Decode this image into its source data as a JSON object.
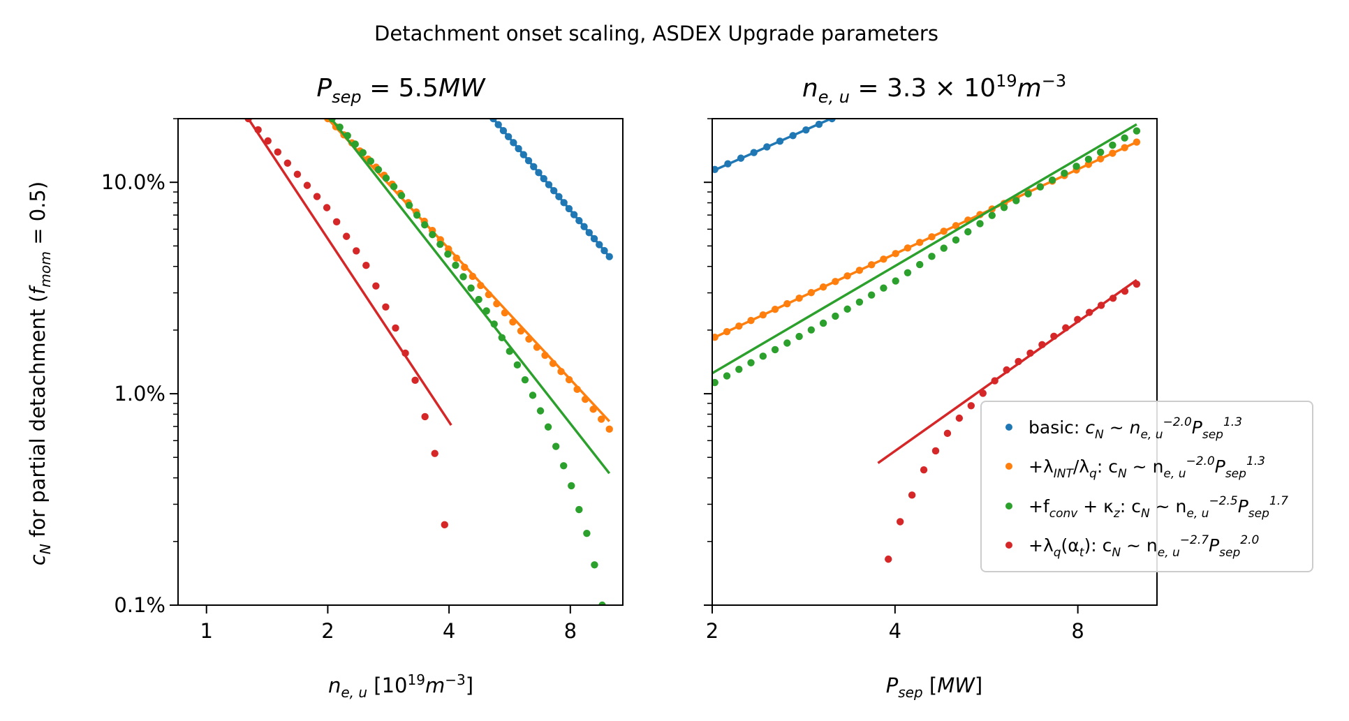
{
  "figure": {
    "suptitle": "Detachment onset scaling, ASDEX Upgrade parameters",
    "shared_ylabel": {
      "main": "c",
      "main_sub": "N",
      "rest": " for partial detachment (",
      "f": "f",
      "f_sub": "mom",
      "eq": " = 0.5)"
    }
  },
  "chart_data": [
    {
      "type": "scatter",
      "title": "P_sep = 5.5MW",
      "title_parts": {
        "var": "P",
        "sub": "sep",
        "eq": " = 5.5",
        "unit": "MW"
      },
      "xlabel": "n_e,u [10^19 m^-3]",
      "xlabel_parts": {
        "var": "n",
        "sub": "e, u",
        "pre": " [10",
        "exp": "19",
        "unit": "m",
        "unit_exp": "−3",
        "post": "]"
      },
      "ylabel": "c_N for partial detachment (f_mom = 0.5)",
      "xscale": "log",
      "yscale": "log",
      "xlim": [
        0.85,
        10.8
      ],
      "ylim": [
        0.001,
        0.2
      ],
      "xticks": [
        1,
        2,
        4,
        8
      ],
      "xtick_labels": [
        "1",
        "2",
        "4",
        "8"
      ],
      "yticks": [
        0.001,
        0.01,
        0.1
      ],
      "ytick_labels": [
        "0.1%",
        "1.0%",
        "10.0%"
      ],
      "grid": false,
      "series": [
        {
          "name": "basic",
          "color": "#1f77b4",
          "points": {
            "x_start": 5.15,
            "x_end": 10.0,
            "n": 24,
            "anchors": [
              [
                5.15,
                0.2
              ],
              [
                10.0,
                0.0445
              ]
            ]
          },
          "fit": {
            "x_range": [
              5.15,
              10.0
            ],
            "y_range": [
              0.2,
              0.0445
            ]
          }
        },
        {
          "name": "+λ_INT/λ_q",
          "color": "#ff7f0e",
          "points": {
            "x_start": 2.0,
            "x_end": 10.0,
            "n": 36,
            "anchors": [
              [
                2.0,
                0.2
              ],
              [
                2.8,
                0.105
              ],
              [
                4.0,
                0.048
              ],
              [
                6.0,
                0.02
              ],
              [
                8.0,
                0.0115
              ],
              [
                10.0,
                0.0068
              ]
            ]
          },
          "fit": {
            "x_range": [
              2.0,
              10.0
            ],
            "y_range": [
              0.2,
              0.0074
            ]
          }
        },
        {
          "name": "+f_conv + κ_z",
          "color": "#2ca02c",
          "points": {
            "x_start": 2.05,
            "x_end": 9.6,
            "n": 36,
            "anchors": [
              [
                2.05,
                0.2
              ],
              [
                3.0,
                0.09
              ],
              [
                4.0,
                0.045
              ],
              [
                5.0,
                0.024
              ],
              [
                6.0,
                0.013
              ],
              [
                7.0,
                0.0072
              ],
              [
                8.0,
                0.0038
              ],
              [
                9.0,
                0.0019
              ],
              [
                9.6,
                0.001
              ]
            ]
          },
          "fit": {
            "x_range": [
              2.0,
              10.0
            ],
            "y_range": [
              0.21,
              0.0042
            ]
          }
        },
        {
          "name": "+λ_q(α_t)",
          "color": "#d62728",
          "points": {
            "x_start": 1.27,
            "x_end": 3.9,
            "n": 21,
            "anchors": [
              [
                1.27,
                0.2
              ],
              [
                2.0,
                0.075
              ],
              [
                2.5,
                0.04
              ],
              [
                3.0,
                0.019
              ],
              [
                3.3,
                0.0115
              ],
              [
                3.6,
                0.0062
              ],
              [
                3.8,
                0.0042
              ],
              [
                3.9,
                0.0024
              ]
            ]
          },
          "fit": {
            "x_range": [
              1.27,
              4.05
            ],
            "y_range": [
              0.2,
              0.0071
            ]
          }
        }
      ]
    },
    {
      "type": "scatter",
      "title": "n_e,u = 3.3 × 10^19 m^-3",
      "title_parts": {
        "var": "n",
        "sub": "e, u",
        "eq": " = 3.3 × 10",
        "exp": "19",
        "unit": "m",
        "unit_exp": "−3"
      },
      "xlabel": "P_sep [MW]",
      "xlabel_parts": {
        "var": "P",
        "sub": "sep",
        "post": " [",
        "unit": "MW",
        "close": "]"
      },
      "xscale": "log",
      "yscale": "log",
      "xlim": [
        2.0,
        10.8
      ],
      "ylim": [
        0.001,
        0.2
      ],
      "xticks": [
        2,
        4,
        8
      ],
      "xtick_labels": [
        "2",
        "4",
        "8"
      ],
      "yticks": [
        0.001,
        0.01,
        0.1
      ],
      "grid": false,
      "series": [
        {
          "name": "basic",
          "color": "#1f77b4",
          "points": {
            "x_start": 2.02,
            "x_end": 3.15,
            "n": 10,
            "anchors": [
              [
                2.02,
                0.115
              ],
              [
                3.15,
                0.2
              ]
            ]
          },
          "fit": {
            "x_range": [
              2.0,
              3.2
            ],
            "y_range": [
              0.113,
              0.205
            ]
          }
        },
        {
          "name": "+λ_INT/λ_q",
          "color": "#ff7f0e",
          "points": {
            "x_start": 2.02,
            "x_end": 10.0,
            "n": 36,
            "anchors": [
              [
                2.02,
                0.0185
              ],
              [
                10.0,
                0.155
              ]
            ]
          },
          "fit": {
            "x_range": [
              2.02,
              10.0
            ],
            "y_range": [
              0.0185,
              0.155
            ]
          }
        },
        {
          "name": "+f_conv + κ_z",
          "color": "#2ca02c",
          "points": {
            "x_start": 2.02,
            "x_end": 10.0,
            "n": 36,
            "anchors": [
              [
                2.02,
                0.0113
              ],
              [
                3.0,
                0.021
              ],
              [
                4.0,
                0.034
              ],
              [
                6.0,
                0.075
              ],
              [
                8.0,
                0.12
              ],
              [
                10.0,
                0.175
              ]
            ]
          },
          "fit": {
            "x_range": [
              2.0,
              10.0
            ],
            "y_range": [
              0.0125,
              0.188
            ]
          }
        },
        {
          "name": "+λ_q(α_t)",
          "color": "#d62728",
          "points": {
            "x_start": 3.9,
            "x_end": 10.0,
            "n": 22,
            "anchors": [
              [
                3.9,
                0.00165
              ],
              [
                4.1,
                0.0026
              ],
              [
                4.5,
                0.0046
              ],
              [
                5.0,
                0.0072
              ],
              [
                6.0,
                0.0125
              ],
              [
                8.0,
                0.0225
              ],
              [
                10.0,
                0.033
              ]
            ]
          },
          "fit": {
            "x_range": [
              3.75,
              10.0
            ],
            "y_range": [
              0.0047,
              0.0345
            ]
          }
        }
      ]
    }
  ],
  "legend": {
    "location": "lower right",
    "entries": [
      {
        "color": "#1f77b4",
        "prefix": "basic: ",
        "lab": [
          {
            "t": "c"
          },
          {
            "t": "N",
            "k": "sub"
          },
          {
            "t": " ~ "
          },
          {
            "t": "n"
          },
          {
            "t": "e, u",
            "k": "sub"
          },
          {
            "t": "−2.0",
            "k": "sup"
          },
          {
            "t": "P"
          },
          {
            "t": "sep",
            "k": "sub"
          },
          {
            "t": "1.3",
            "k": "sup"
          }
        ]
      },
      {
        "color": "#ff7f0e",
        "prefix": "",
        "lab": [
          {
            "t": "+λ"
          },
          {
            "t": "INT",
            "k": "sub"
          },
          {
            "t": "/λ"
          },
          {
            "t": "q",
            "k": "sub"
          },
          {
            "t": ": c"
          },
          {
            "t": "N",
            "k": "sub"
          },
          {
            "t": " ~ n"
          },
          {
            "t": "e, u",
            "k": "sub"
          },
          {
            "t": "−2.0",
            "k": "sup"
          },
          {
            "t": "P"
          },
          {
            "t": "sep",
            "k": "sub"
          },
          {
            "t": "1.3",
            "k": "sup"
          }
        ]
      },
      {
        "color": "#2ca02c",
        "prefix": "",
        "lab": [
          {
            "t": "+f"
          },
          {
            "t": "conv",
            "k": "sub"
          },
          {
            "t": " + κ"
          },
          {
            "t": "z",
            "k": "sub"
          },
          {
            "t": ": c"
          },
          {
            "t": "N",
            "k": "sub"
          },
          {
            "t": " ~ n"
          },
          {
            "t": "e, u",
            "k": "sub"
          },
          {
            "t": "−2.5",
            "k": "sup"
          },
          {
            "t": "P"
          },
          {
            "t": "sep",
            "k": "sub"
          },
          {
            "t": "1.7",
            "k": "sup"
          }
        ]
      },
      {
        "color": "#d62728",
        "prefix": "",
        "lab": [
          {
            "t": "+λ"
          },
          {
            "t": "q",
            "k": "sub"
          },
          {
            "t": "(α"
          },
          {
            "t": "t",
            "k": "sub"
          },
          {
            "t": "): c"
          },
          {
            "t": "N",
            "k": "sub"
          },
          {
            "t": " ~ n"
          },
          {
            "t": "e, u",
            "k": "sub"
          },
          {
            "t": "−2.7",
            "k": "sup"
          },
          {
            "t": "P"
          },
          {
            "t": "sep",
            "k": "sub"
          },
          {
            "t": "2.0",
            "k": "sup"
          }
        ]
      }
    ]
  }
}
